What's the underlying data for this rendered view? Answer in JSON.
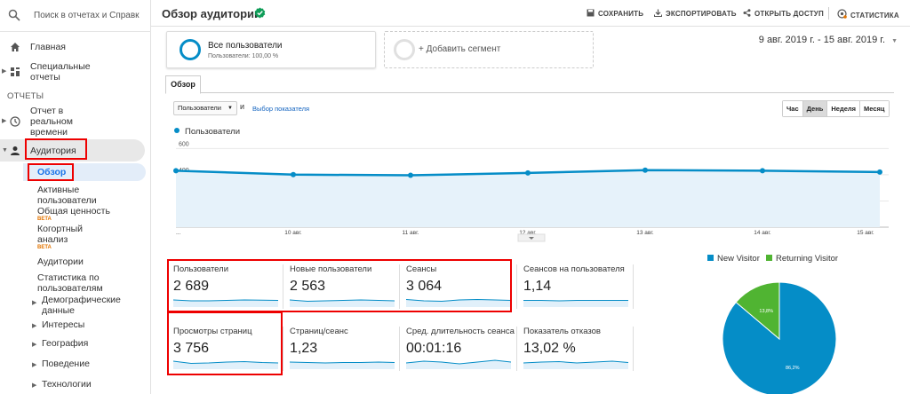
{
  "search": {
    "placeholder": "Поиск в отчетах и Справк"
  },
  "sidebar": {
    "main_items": [
      {
        "label": "Главная"
      },
      {
        "label": "Специальные отчеты"
      }
    ],
    "section_label": "ОТЧЕТЫ",
    "realtime": "Отчет в реальном времени",
    "audience": "Аудитория",
    "audience_items": [
      {
        "label": "Обзор"
      },
      {
        "label": "Активные пользователи"
      },
      {
        "label": "Общая ценность",
        "badge": "BETA"
      },
      {
        "label": "Когортный анализ",
        "badge": "BETA"
      },
      {
        "label": "Аудитории"
      },
      {
        "label": "Статистика по пользователям"
      },
      {
        "label": "Демографические данные"
      },
      {
        "label": "Интересы"
      },
      {
        "label": "География"
      },
      {
        "label": "Поведение"
      },
      {
        "label": "Технологии"
      }
    ]
  },
  "header": {
    "title": "Обзор аудитории",
    "save": "СОХРАНИТЬ",
    "export": "ЭКСПОРТИРОВАТЬ",
    "share": "ОТКРЫТЬ ДОСТУП",
    "stats": "СТАТИСТИКА"
  },
  "segments": {
    "seg1_title": "Все пользователи",
    "seg1_sub": "Пользователи: 100,00 %",
    "add": "+ Добавить сегмент"
  },
  "date_range": "9 авг. 2019 г. - 15 авг. 2019 г.",
  "tab": "Обзор",
  "metric_select": "Пользователи",
  "and_text": "и",
  "choose_metric": "Выбор показателя",
  "periods": [
    {
      "label": "Час",
      "active": false
    },
    {
      "label": "День",
      "active": true
    },
    {
      "label": "Неделя",
      "active": false
    },
    {
      "label": "Месяц",
      "active": false
    }
  ],
  "metrics": [
    {
      "label": "Пользователи",
      "value": "2 689"
    },
    {
      "label": "Новые пользователи",
      "value": "2 563"
    },
    {
      "label": "Сеансы",
      "value": "3 064"
    },
    {
      "label": "Сеансов на пользователя",
      "value": "1,14"
    },
    {
      "label": "Просмотры страниц",
      "value": "3 756"
    },
    {
      "label": "Страниц/сеанс",
      "value": "1,23"
    },
    {
      "label": "Сред. длительность сеанса",
      "value": "00:01:16"
    },
    {
      "label": "Показатель отказов",
      "value": "13,02 %"
    }
  ],
  "colors": {
    "accent": "#058dc7",
    "green": "#50b432",
    "highlight": "#e00000"
  },
  "chart_data": [
    {
      "type": "line",
      "series": [
        {
          "name": "Пользователи",
          "values": [
            431,
            401,
            396,
            414,
            435,
            431,
            421
          ]
        }
      ],
      "x": [
        "...",
        "10 авг.",
        "11 авг.",
        "12 авг.",
        "13 авг.",
        "14 авг.",
        "15 авг."
      ],
      "yticks": [
        "600",
        "400",
        "200"
      ],
      "ylim": [
        0,
        650
      ]
    },
    {
      "type": "pie",
      "labels": [
        "New Visitor",
        "Returning Visitor"
      ],
      "values": [
        86.2,
        13.8
      ],
      "data_labels": [
        "86,2%",
        "13,8%"
      ],
      "colors": [
        "#058dc7",
        "#50b432"
      ]
    }
  ]
}
